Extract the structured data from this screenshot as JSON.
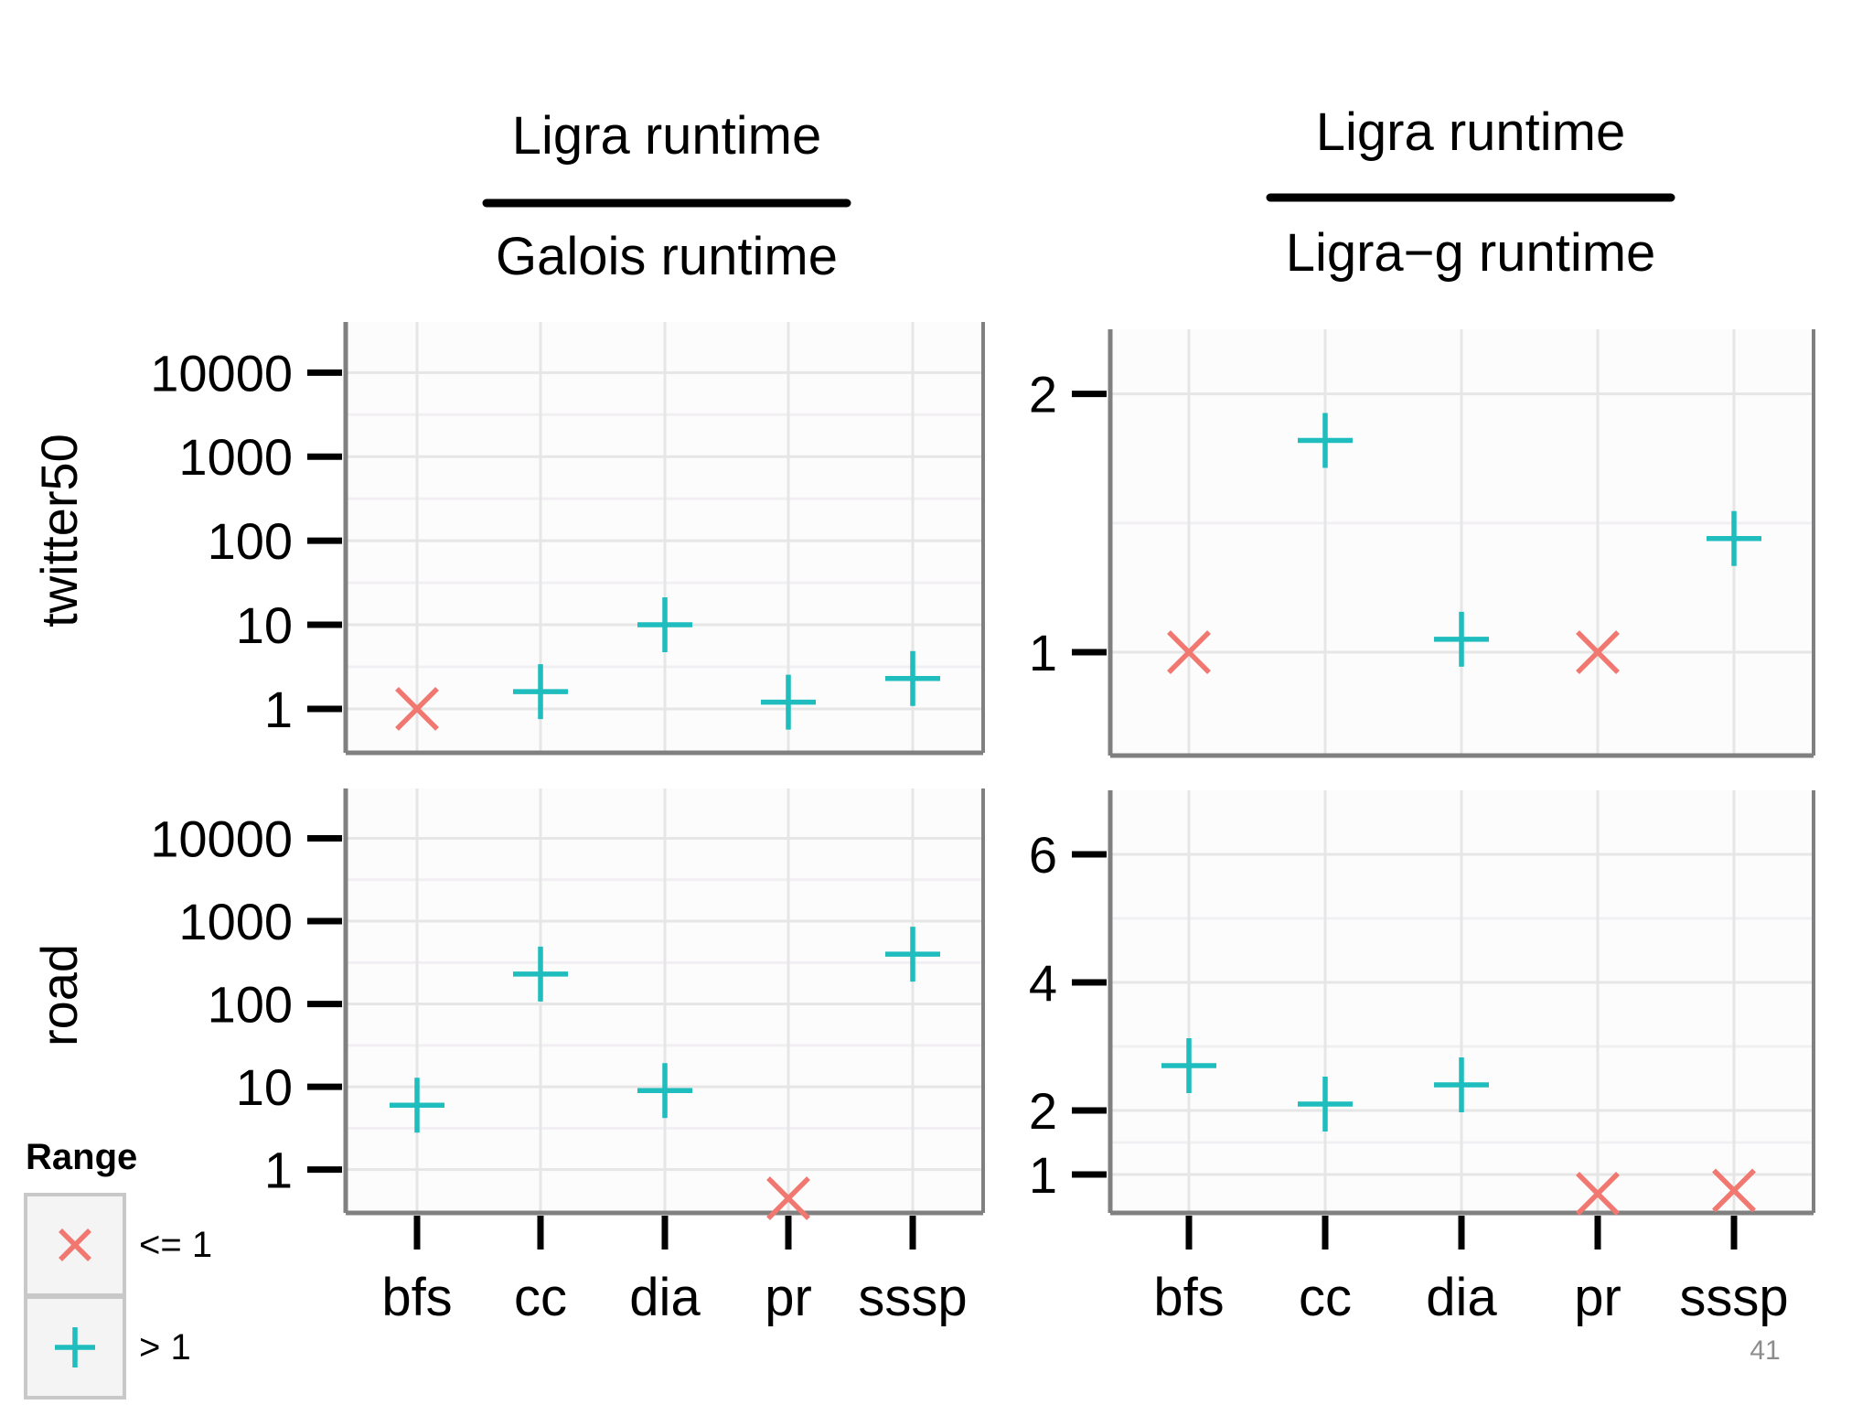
{
  "slide_number": "41",
  "colors": {
    "le1": "#f07870",
    "gt1": "#1fbdbd",
    "frame": "#808080",
    "grid": "#e6e6e6",
    "tick": "#000000"
  },
  "chart_data": {
    "type": "scatter",
    "layout": "facet-grid",
    "columns": [
      {
        "numerator": "Ligra runtime",
        "denominator": "Galois runtime"
      },
      {
        "numerator": "Ligra runtime",
        "denominator": "Ligra−g runtime"
      }
    ],
    "rows": [
      "twitter50",
      "road"
    ],
    "categories": [
      "bfs",
      "cc",
      "dia",
      "pr",
      "sssp"
    ],
    "legend": {
      "title": "Range",
      "placement": "bottom-left",
      "entries": [
        {
          "key": "le1",
          "marker": "x",
          "label": "<= 1"
        },
        {
          "key": "gt1",
          "marker": "plus",
          "label": "> 1"
        }
      ]
    },
    "panels": [
      {
        "row": "twitter50",
        "column": 0,
        "yscale": "log10",
        "ylim": [
          0.3,
          40000
        ],
        "yticks": [
          1,
          10,
          100,
          1000,
          10000
        ],
        "ytick_labels": [
          "1",
          "10",
          "100",
          "1000",
          "10000"
        ],
        "values": [
          1.0,
          1.6,
          10,
          1.2,
          2.3
        ]
      },
      {
        "row": "twitter50",
        "column": 1,
        "yscale": "linear",
        "ylim": [
          0.6,
          2.25
        ],
        "yticks": [
          1,
          2
        ],
        "ytick_labels": [
          "1",
          "2"
        ],
        "values": [
          1.0,
          1.82,
          1.05,
          1.0,
          1.44
        ]
      },
      {
        "row": "road",
        "column": 0,
        "yscale": "log10",
        "ylim": [
          0.3,
          40000
        ],
        "yticks": [
          1,
          10,
          100,
          1000,
          10000
        ],
        "ytick_labels": [
          "1",
          "10",
          "100",
          "1000",
          "10000"
        ],
        "values": [
          6,
          230,
          9,
          0.45,
          400
        ]
      },
      {
        "row": "road",
        "column": 1,
        "yscale": "linear",
        "ylim": [
          0.4,
          7.0
        ],
        "yticks": [
          1,
          2,
          4,
          6
        ],
        "ytick_labels": [
          "1",
          "2",
          "4",
          "6"
        ],
        "values": [
          2.7,
          2.1,
          2.4,
          0.7,
          0.75
        ]
      }
    ]
  }
}
